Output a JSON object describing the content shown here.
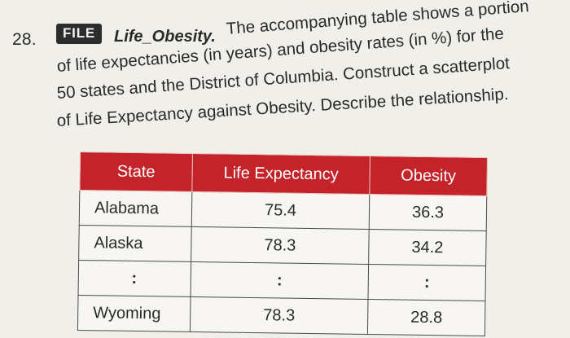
{
  "problem": {
    "number": "28.",
    "badge": "FILE",
    "filename": "Life_Obesity.",
    "lines": [
      "The accompanying table shows a portion",
      "of life expectancies (in years) and obesity rates (in %) for the",
      "50 states and the District of Columbia. Construct a scatterplot",
      "of Life Expectancy against Obesity. Describe the relationship."
    ]
  },
  "table": {
    "headers": [
      "State",
      "Life Expectancy",
      "Obesity"
    ],
    "rows": [
      [
        "Alabama",
        "75.4",
        "36.3"
      ],
      [
        "Alaska",
        "78.3",
        "34.2"
      ],
      [
        ":",
        ":",
        ":"
      ],
      [
        "Wyoming",
        "78.3",
        "28.8"
      ]
    ],
    "header_color": "#c4232a"
  }
}
